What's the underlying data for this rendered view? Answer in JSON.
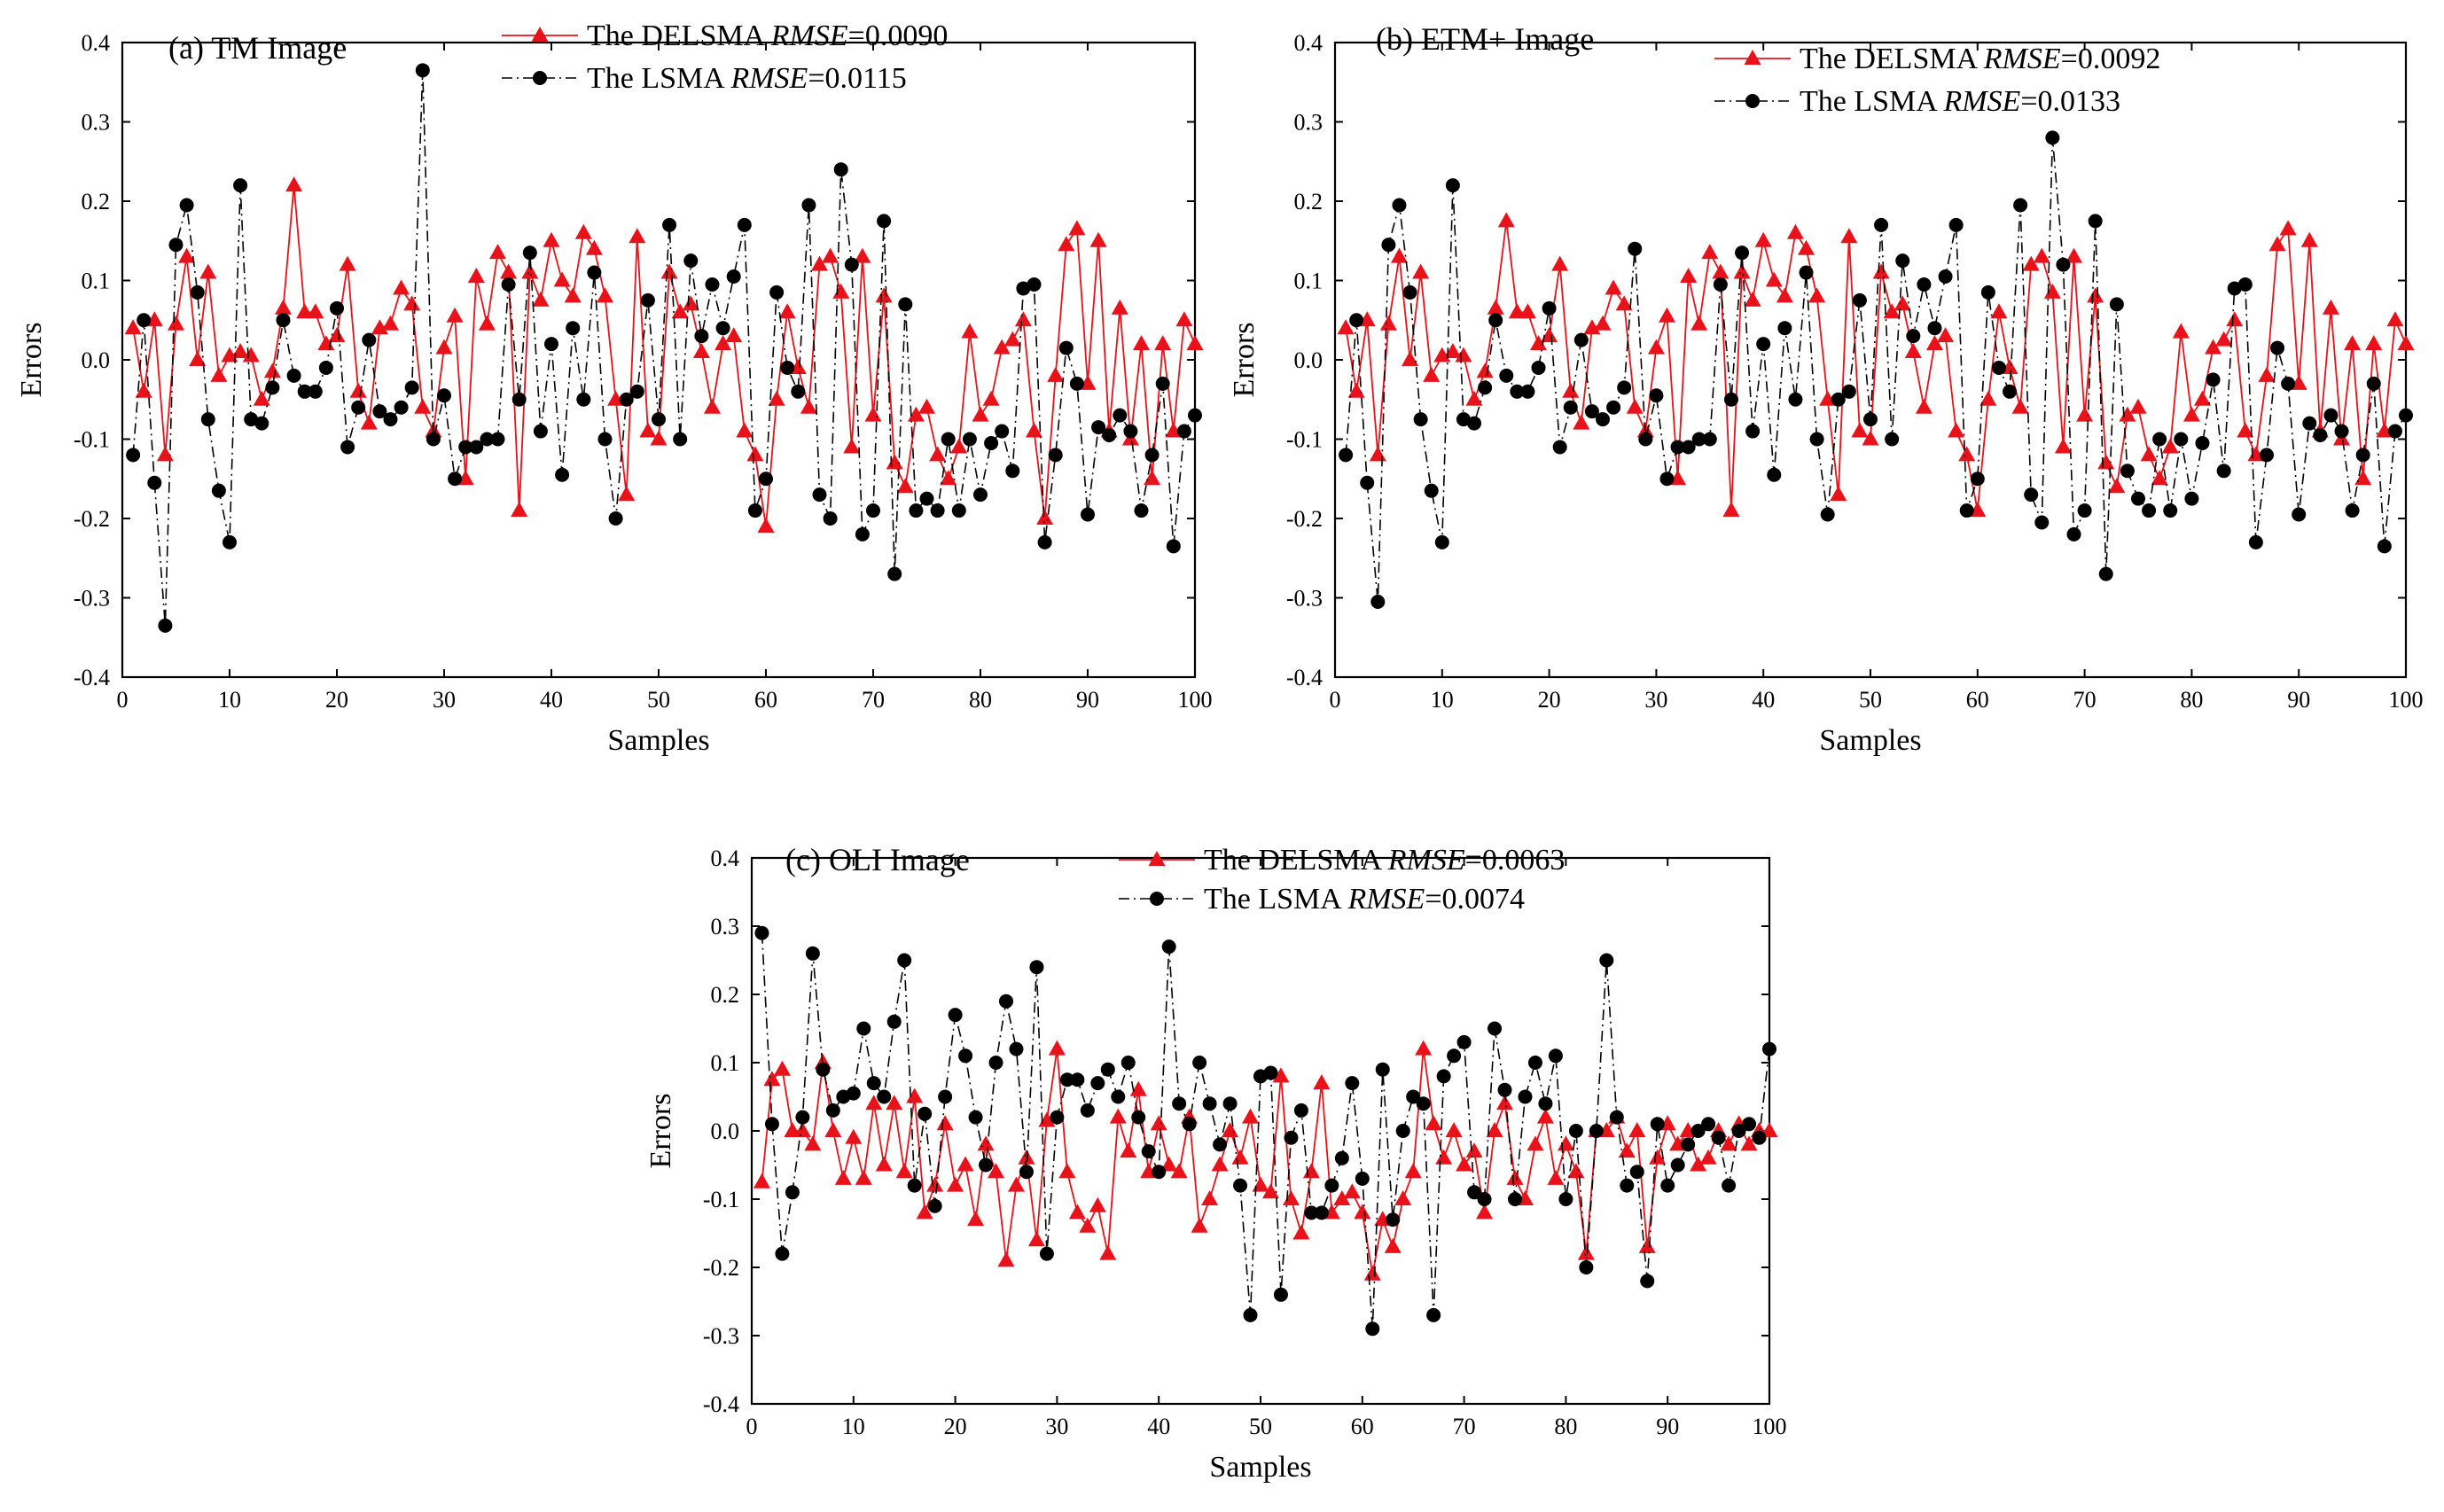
{
  "chart_data": [
    {
      "type": "line",
      "title": "(a) TM Image",
      "xlabel": "Samples",
      "ylabel": "Errors",
      "xlim": [
        0,
        100
      ],
      "ylim": [
        -0.4,
        0.4
      ],
      "xticks": [
        0,
        10,
        20,
        30,
        40,
        50,
        60,
        70,
        80,
        90,
        100
      ],
      "yticks": [
        -0.4,
        -0.3,
        -0.2,
        -0.1,
        0.0,
        0.1,
        0.2,
        0.3,
        0.4
      ],
      "ytick_labels": [
        "-0.4",
        "-0.3",
        "-0.2",
        "-0.1",
        "0.0",
        "0.1",
        "0.2",
        "0.3",
        "0.4"
      ],
      "legend_position": "top-center",
      "series": [
        {
          "name": "The DELSMA",
          "metric": "RMSE",
          "metric_value": "=0.0090",
          "color": "#e8121b",
          "marker": "triangle",
          "linestyle": "solid",
          "values": [
            0.04,
            -0.04,
            0.05,
            -0.12,
            0.045,
            0.13,
            0.0,
            0.11,
            -0.02,
            0.005,
            0.01,
            0.005,
            -0.05,
            -0.015,
            0.065,
            0.22,
            0.06,
            0.06,
            0.02,
            0.03,
            0.12,
            -0.04,
            -0.08,
            0.04,
            0.045,
            0.09,
            0.07,
            -0.06,
            -0.09,
            0.015,
            0.055,
            -0.15,
            0.105,
            0.045,
            0.135,
            0.11,
            -0.19,
            0.11,
            0.075,
            0.15,
            0.1,
            0.08,
            0.16,
            0.14,
            0.08,
            -0.05,
            -0.17,
            0.155,
            -0.09,
            -0.1,
            0.11,
            0.06,
            0.07,
            0.01,
            -0.06,
            0.02,
            0.03,
            -0.09,
            -0.12,
            -0.21,
            -0.05,
            0.06,
            -0.01,
            -0.06,
            0.12,
            0.13,
            0.085,
            -0.11,
            0.13,
            -0.07,
            0.08,
            -0.13,
            -0.16,
            -0.07,
            -0.06,
            -0.12,
            -0.15,
            -0.11,
            0.035,
            -0.07,
            -0.05,
            0.015,
            0.025,
            0.05,
            -0.09,
            -0.2,
            -0.02,
            0.145,
            0.165,
            -0.03,
            0.15,
            -0.09,
            0.065,
            -0.1,
            0.02,
            -0.15,
            0.02,
            -0.09,
            0.05,
            0.02
          ]
        },
        {
          "name": "The LSMA",
          "metric": "RMSE",
          "metric_value": "=0.0115",
          "color": "#000000",
          "marker": "circle",
          "linestyle": "dashdot",
          "values": [
            -0.12,
            0.05,
            -0.155,
            -0.335,
            0.145,
            0.195,
            0.085,
            -0.075,
            -0.165,
            -0.23,
            0.22,
            -0.075,
            -0.08,
            -0.035,
            0.05,
            -0.02,
            -0.04,
            -0.04,
            -0.01,
            0.065,
            -0.11,
            -0.06,
            0.025,
            -0.065,
            -0.075,
            -0.06,
            -0.035,
            0.365,
            -0.1,
            -0.045,
            -0.15,
            -0.11,
            -0.11,
            -0.1,
            -0.1,
            0.095,
            -0.05,
            0.135,
            -0.09,
            0.02,
            -0.145,
            0.04,
            -0.05,
            0.11,
            -0.1,
            -0.2,
            -0.05,
            -0.04,
            0.075,
            -0.075,
            0.17,
            -0.1,
            0.125,
            0.03,
            0.095,
            0.04,
            0.105,
            0.17,
            -0.19,
            -0.15,
            0.085,
            -0.01,
            -0.04,
            0.195,
            -0.17,
            -0.2,
            0.24,
            0.12,
            -0.22,
            -0.19,
            0.175,
            -0.27,
            0.07,
            -0.19,
            -0.175,
            -0.19,
            -0.1,
            -0.19,
            -0.1,
            -0.17,
            -0.105,
            -0.09,
            -0.14,
            0.09,
            0.095,
            -0.23,
            -0.12,
            0.015,
            -0.03,
            -0.195,
            -0.085,
            -0.095,
            -0.07,
            -0.09,
            -0.19,
            -0.12,
            -0.03,
            -0.235,
            -0.09,
            -0.07
          ]
        }
      ]
    },
    {
      "type": "line",
      "title": "(b) ETM+ Image",
      "xlabel": "Samples",
      "ylabel": "Errors",
      "xlim": [
        0,
        100
      ],
      "ylim": [
        -0.4,
        0.4
      ],
      "xticks": [
        0,
        10,
        20,
        30,
        40,
        50,
        60,
        70,
        80,
        90,
        100
      ],
      "yticks": [
        -0.4,
        -0.3,
        -0.2,
        -0.1,
        0.0,
        0.1,
        0.2,
        0.3,
        0.4
      ],
      "ytick_labels": [
        "-0.4",
        "-0.3",
        "-0.2",
        "-0.1",
        "0.0",
        "0.1",
        "0.2",
        "0.3",
        "0.4"
      ],
      "legend_position": "top-right",
      "series": [
        {
          "name": "The DELSMA",
          "metric": "RMSE",
          "metric_value": "=0.0092",
          "color": "#e8121b",
          "marker": "triangle",
          "linestyle": "solid",
          "values": [
            0.04,
            -0.04,
            0.05,
            -0.12,
            0.045,
            0.13,
            0.0,
            0.11,
            -0.02,
            0.005,
            0.01,
            0.005,
            -0.05,
            -0.015,
            0.065,
            0.175,
            0.06,
            0.06,
            0.02,
            0.03,
            0.12,
            -0.04,
            -0.08,
            0.04,
            0.045,
            0.09,
            0.07,
            -0.06,
            -0.09,
            0.015,
            0.055,
            -0.15,
            0.105,
            0.045,
            0.135,
            0.11,
            -0.19,
            0.11,
            0.075,
            0.15,
            0.1,
            0.08,
            0.16,
            0.14,
            0.08,
            -0.05,
            -0.17,
            0.155,
            -0.09,
            -0.1,
            0.11,
            0.06,
            0.07,
            0.01,
            -0.06,
            0.02,
            0.03,
            -0.09,
            -0.12,
            -0.19,
            -0.05,
            0.06,
            -0.01,
            -0.06,
            0.12,
            0.13,
            0.085,
            -0.11,
            0.13,
            -0.07,
            0.08,
            -0.13,
            -0.16,
            -0.07,
            -0.06,
            -0.12,
            -0.15,
            -0.11,
            0.035,
            -0.07,
            -0.05,
            0.015,
            0.025,
            0.05,
            -0.09,
            -0.12,
            -0.02,
            0.145,
            0.165,
            -0.03,
            0.15,
            -0.09,
            0.065,
            -0.1,
            0.02,
            -0.15,
            0.02,
            -0.09,
            0.05,
            0.02
          ]
        },
        {
          "name": "The LSMA",
          "metric": "RMSE",
          "metric_value": "=0.0133",
          "color": "#000000",
          "marker": "circle",
          "linestyle": "dashdot",
          "values": [
            -0.12,
            0.05,
            -0.155,
            -0.305,
            0.145,
            0.195,
            0.085,
            -0.075,
            -0.165,
            -0.23,
            0.22,
            -0.075,
            -0.08,
            -0.035,
            0.05,
            -0.02,
            -0.04,
            -0.04,
            -0.01,
            0.065,
            -0.11,
            -0.06,
            0.025,
            -0.065,
            -0.075,
            -0.06,
            -0.035,
            0.14,
            -0.1,
            -0.045,
            -0.15,
            -0.11,
            -0.11,
            -0.1,
            -0.1,
            0.095,
            -0.05,
            0.135,
            -0.09,
            0.02,
            -0.145,
            0.04,
            -0.05,
            0.11,
            -0.1,
            -0.195,
            -0.05,
            -0.04,
            0.075,
            -0.075,
            0.17,
            -0.1,
            0.125,
            0.03,
            0.095,
            0.04,
            0.105,
            0.17,
            -0.19,
            -0.15,
            0.085,
            -0.01,
            -0.04,
            0.195,
            -0.17,
            -0.205,
            0.28,
            0.12,
            -0.22,
            -0.19,
            0.175,
            -0.27,
            0.07,
            -0.14,
            -0.175,
            -0.19,
            -0.1,
            -0.19,
            -0.1,
            -0.175,
            -0.105,
            -0.025,
            -0.14,
            0.09,
            0.095,
            -0.23,
            -0.12,
            0.015,
            -0.03,
            -0.195,
            -0.08,
            -0.095,
            -0.07,
            -0.09,
            -0.19,
            -0.12,
            -0.03,
            -0.235,
            -0.09,
            -0.07
          ]
        }
      ]
    },
    {
      "type": "line",
      "title": "(c) OLI Image",
      "xlabel": "Samples",
      "ylabel": "Errors",
      "xlim": [
        0,
        100
      ],
      "ylim": [
        -0.4,
        0.4
      ],
      "xticks": [
        0,
        10,
        20,
        30,
        40,
        50,
        60,
        70,
        80,
        90,
        100
      ],
      "yticks": [
        -0.4,
        -0.3,
        -0.2,
        -0.1,
        0.0,
        0.1,
        0.2,
        0.3,
        0.4
      ],
      "ytick_labels": [
        "-0.4",
        "-0.3",
        "-0.2",
        "-0.1",
        "0.0",
        "0.1",
        "0.2",
        "0.3",
        "0.4"
      ],
      "legend_position": "top-center",
      "series": [
        {
          "name": "The DELSMA",
          "metric": "RMSE",
          "metric_value": "=0.0063",
          "color": "#e8121b",
          "marker": "triangle",
          "linestyle": "solid",
          "values": [
            -0.075,
            0.075,
            0.09,
            0.0,
            0.0,
            -0.02,
            0.1,
            0.0,
            -0.07,
            -0.01,
            -0.07,
            0.04,
            -0.05,
            0.04,
            -0.06,
            0.05,
            -0.12,
            -0.08,
            0.01,
            -0.08,
            -0.05,
            -0.13,
            -0.02,
            -0.06,
            -0.19,
            -0.08,
            -0.04,
            -0.16,
            0.015,
            0.12,
            -0.06,
            -0.12,
            -0.14,
            -0.11,
            -0.18,
            0.02,
            -0.03,
            0.06,
            -0.06,
            0.01,
            -0.05,
            -0.06,
            0.02,
            -0.14,
            -0.1,
            -0.05,
            0.0,
            -0.04,
            0.02,
            -0.08,
            -0.09,
            0.08,
            -0.1,
            -0.15,
            -0.06,
            0.07,
            -0.12,
            -0.1,
            -0.09,
            -0.12,
            -0.21,
            -0.13,
            -0.17,
            -0.1,
            -0.06,
            0.12,
            0.01,
            -0.04,
            0.0,
            -0.05,
            -0.03,
            -0.12,
            0.0,
            0.04,
            -0.07,
            -0.1,
            -0.02,
            0.02,
            -0.07,
            -0.02,
            -0.06,
            -0.18,
            0.0,
            0.0,
            0.02,
            -0.03,
            0.0,
            -0.17,
            -0.04,
            0.01,
            -0.02,
            0.0,
            -0.05,
            -0.04,
            0.0,
            -0.02,
            0.01,
            -0.02,
            0.0,
            0.0
          ]
        },
        {
          "name": "The LSMA",
          "metric": "RMSE",
          "metric_value": "=0.0074",
          "color": "#000000",
          "marker": "circle",
          "linestyle": "dashdot",
          "values": [
            0.29,
            0.01,
            -0.18,
            -0.09,
            0.02,
            0.26,
            0.09,
            0.03,
            0.05,
            0.055,
            0.15,
            0.07,
            0.05,
            0.16,
            0.25,
            -0.08,
            0.025,
            -0.11,
            0.05,
            0.17,
            0.11,
            0.02,
            -0.05,
            0.1,
            0.19,
            0.12,
            -0.06,
            0.24,
            -0.18,
            0.02,
            0.075,
            0.075,
            0.03,
            0.07,
            0.09,
            0.05,
            0.1,
            0.02,
            -0.03,
            -0.06,
            0.27,
            0.04,
            0.01,
            0.1,
            0.04,
            -0.02,
            0.04,
            -0.08,
            -0.27,
            0.08,
            0.085,
            -0.24,
            -0.01,
            0.03,
            -0.12,
            -0.12,
            -0.08,
            -0.04,
            0.07,
            -0.07,
            -0.29,
            0.09,
            -0.13,
            0.0,
            0.05,
            0.04,
            -0.27,
            0.08,
            0.11,
            0.13,
            -0.09,
            -0.1,
            0.15,
            0.06,
            -0.1,
            0.05,
            0.1,
            0.04,
            0.11,
            -0.1,
            0.0,
            -0.2,
            0.0,
            0.25,
            0.02,
            -0.08,
            -0.06,
            -0.22,
            0.01,
            -0.08,
            -0.05,
            -0.02,
            0.0,
            0.01,
            -0.01,
            -0.08,
            0.0,
            0.01,
            -0.01,
            0.12
          ]
        }
      ]
    }
  ]
}
